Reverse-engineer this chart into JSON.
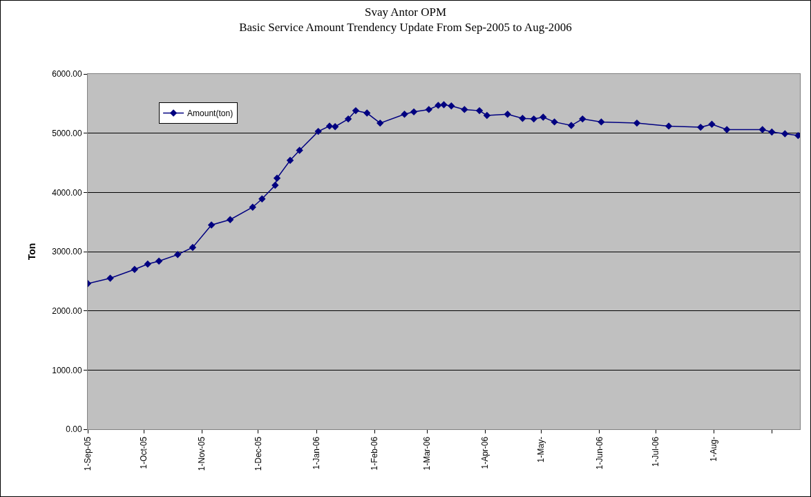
{
  "chart_data": {
    "type": "line",
    "title": "Svay Antor OPM",
    "subtitle": "Basic Service Amount Trendency Update From Sep-2005 to Aug-2006",
    "ylabel": "Ton",
    "x": [
      "2005-09-01",
      "2005-09-13",
      "2005-09-26",
      "2005-10-03",
      "2005-10-09",
      "2005-10-19",
      "2005-10-27",
      "2005-11-06",
      "2005-11-16",
      "2005-11-28",
      "2005-12-03",
      "2005-12-10",
      "2005-12-11",
      "2005-12-18",
      "2005-12-23",
      "2006-01-02",
      "2006-01-08",
      "2006-01-11",
      "2006-01-18",
      "2006-01-22",
      "2006-01-28",
      "2006-02-04",
      "2006-02-17",
      "2006-02-22",
      "2006-03-02",
      "2006-03-07",
      "2006-03-10",
      "2006-03-14",
      "2006-03-21",
      "2006-03-29",
      "2006-04-02",
      "2006-04-13",
      "2006-04-21",
      "2006-04-27",
      "2006-05-02",
      "2006-05-08",
      "2006-05-17",
      "2006-05-23",
      "2006-06-02",
      "2006-06-21",
      "2006-07-08",
      "2006-07-25",
      "2006-07-31",
      "2006-08-08",
      "2006-08-27",
      "2006-09-01",
      "2006-09-08",
      "2006-09-15"
    ],
    "series": [
      {
        "name": "Amount(ton)",
        "color": "#000080",
        "values": [
          2460,
          2550,
          2700,
          2790,
          2840,
          2950,
          3070,
          3450,
          3540,
          3750,
          3890,
          4120,
          4240,
          4540,
          4710,
          5030,
          5120,
          5110,
          5240,
          5380,
          5340,
          5170,
          5320,
          5360,
          5400,
          5470,
          5480,
          5460,
          5400,
          5380,
          5300,
          5320,
          5250,
          5240,
          5270,
          5190,
          5130,
          5240,
          5190,
          5170,
          5120,
          5100,
          5150,
          5060,
          5060,
          5020,
          4990,
          4960
        ]
      }
    ],
    "xlim": [
      "2005-09-01",
      "2006-09-16"
    ],
    "xticks": [
      {
        "value": "2005-09-01",
        "label": "1-Sep-05"
      },
      {
        "value": "2005-10-01",
        "label": "1-Oct-05"
      },
      {
        "value": "2005-11-01",
        "label": "1-Nov-05"
      },
      {
        "value": "2005-12-01",
        "label": "1-Dec-05"
      },
      {
        "value": "2006-01-01",
        "label": "1-Jan-06"
      },
      {
        "value": "2006-02-01",
        "label": "1-Feb-06"
      },
      {
        "value": "2006-03-01",
        "label": "1-Mar-06"
      },
      {
        "value": "2006-04-01",
        "label": "1-Apr-06"
      },
      {
        "value": "2006-05-01",
        "label": "1-May-"
      },
      {
        "value": "2006-06-01",
        "label": "1-Jun-06"
      },
      {
        "value": "2006-07-01",
        "label": "1-Jul-06"
      },
      {
        "value": "2006-08-01",
        "label": "1-Aug-"
      },
      {
        "value": "2006-09-01",
        "label": null
      }
    ],
    "ylim": [
      0,
      6000
    ],
    "yticks": [
      {
        "value": 0,
        "label": "0.00"
      },
      {
        "value": 1000,
        "label": "1000.00"
      },
      {
        "value": 2000,
        "label": "2000.00"
      },
      {
        "value": 3000,
        "label": "3000.00"
      },
      {
        "value": 4000,
        "label": "4000.00"
      },
      {
        "value": 5000,
        "label": "5000.00"
      },
      {
        "value": 6000,
        "label": "6000.00"
      }
    ],
    "grid": "y",
    "legend": "top left",
    "marker": "diamond",
    "line_style": "solid"
  }
}
